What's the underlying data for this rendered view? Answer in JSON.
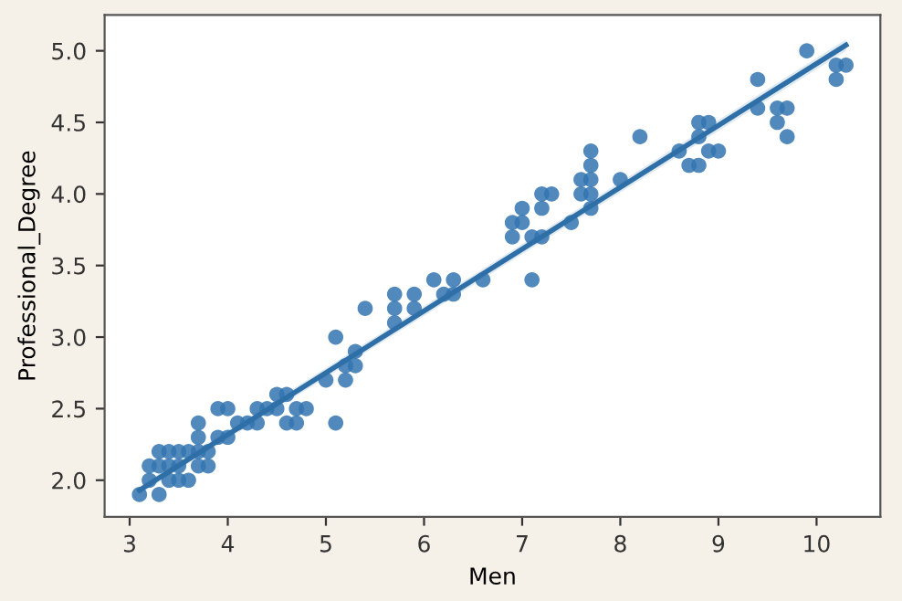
{
  "chart_data": {
    "type": "scatter",
    "xlabel": "Men",
    "ylabel": "Professional_Degree",
    "xlim": [
      2.745,
      10.65
    ],
    "ylim": [
      1.744,
      5.25
    ],
    "xticks": [
      3,
      4,
      5,
      6,
      7,
      8,
      9,
      10
    ],
    "yticks": [
      {
        "value": 2,
        "label": "2.0"
      },
      {
        "value": 2.5,
        "label": "2.5"
      },
      {
        "value": 3,
        "label": "3.0"
      },
      {
        "value": 3.5,
        "label": "3.5"
      },
      {
        "value": 4,
        "label": "4.0"
      },
      {
        "value": 4.5,
        "label": "4.5"
      },
      {
        "value": 5,
        "label": "5.0"
      }
    ],
    "grid": false,
    "series": [
      {
        "marker": "circle",
        "color": "#3274b0",
        "x": [
          3.1,
          3.3,
          3.2,
          3.2,
          3.3,
          3.3,
          3.4,
          3.4,
          3.4,
          3.5,
          3.5,
          3.5,
          3.6,
          3.6,
          3.7,
          3.7,
          3.7,
          3.7,
          3.8,
          3.8,
          3.9,
          3.9,
          4.0,
          4.0,
          4.1,
          4.2,
          4.3,
          4.3,
          4.4,
          4.5,
          4.5,
          4.6,
          4.6,
          4.7,
          4.7,
          4.8,
          5.0,
          5.1,
          5.1,
          5.2,
          5.2,
          5.3,
          5.3,
          5.4,
          5.7,
          5.7,
          5.7,
          5.9,
          5.9,
          6.1,
          6.2,
          6.3,
          6.3,
          6.6,
          6.9,
          6.9,
          7.0,
          7.0,
          7.1,
          7.1,
          7.2,
          7.2,
          7.2,
          7.3,
          7.5,
          7.6,
          7.6,
          7.7,
          7.7,
          7.7,
          7.7,
          7.7,
          8.0,
          8.2,
          8.6,
          8.7,
          8.8,
          8.8,
          8.8,
          8.9,
          8.9,
          9.0,
          9.4,
          9.4,
          9.6,
          9.6,
          9.7,
          9.7,
          9.9,
          10.2,
          10.2,
          10.3
        ],
        "values": [
          1.9,
          1.9,
          2.0,
          2.1,
          2.2,
          2.1,
          2.0,
          2.2,
          2.1,
          2.0,
          2.2,
          2.1,
          2.0,
          2.2,
          2.2,
          2.4,
          2.3,
          2.1,
          2.1,
          2.2,
          2.5,
          2.3,
          2.5,
          2.3,
          2.4,
          2.4,
          2.4,
          2.5,
          2.5,
          2.6,
          2.5,
          2.6,
          2.4,
          2.5,
          2.4,
          2.5,
          2.7,
          3.0,
          2.4,
          2.8,
          2.7,
          2.8,
          2.9,
          3.2,
          3.3,
          3.2,
          3.1,
          3.3,
          3.2,
          3.4,
          3.3,
          3.4,
          3.3,
          3.4,
          3.8,
          3.7,
          3.9,
          3.8,
          3.7,
          3.4,
          3.9,
          4.0,
          3.7,
          4.0,
          3.8,
          4.1,
          4.0,
          4.3,
          4.2,
          4.1,
          3.9,
          4.0,
          4.1,
          4.4,
          4.3,
          4.2,
          4.5,
          4.4,
          4.2,
          4.5,
          4.3,
          4.3,
          4.8,
          4.6,
          4.6,
          4.5,
          4.6,
          4.4,
          5.0,
          4.9,
          4.8,
          4.9
        ]
      },
      {
        "type": "line",
        "color": "#2f6fa8",
        "x": [
          3.1,
          10.3
        ],
        "values": [
          1.93,
          5.04
        ],
        "lower": [
          1.9,
          5.0
        ],
        "upper": [
          1.96,
          5.08
        ]
      }
    ]
  }
}
